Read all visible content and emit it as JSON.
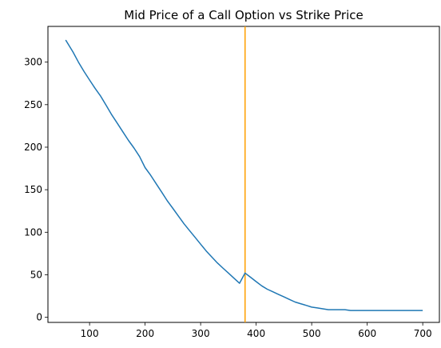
{
  "chart_data": {
    "type": "line",
    "title": "Mid Price of a Call Option vs Strike Price",
    "xlabel": "",
    "ylabel": "",
    "xlim": [
      25,
      730
    ],
    "ylim": [
      -6,
      342
    ],
    "x_ticks": [
      100,
      200,
      300,
      400,
      500,
      600,
      700
    ],
    "y_ticks": [
      0,
      50,
      100,
      150,
      200,
      250,
      300
    ],
    "grid": false,
    "legend": "none",
    "series": [
      {
        "color": "#1f77b4",
        "x": [
          57,
          70,
          80,
          90,
          100,
          110,
          120,
          130,
          140,
          150,
          160,
          170,
          180,
          190,
          200,
          210,
          220,
          230,
          240,
          250,
          260,
          270,
          280,
          290,
          300,
          310,
          320,
          330,
          340,
          350,
          360,
          370,
          380,
          390,
          400,
          410,
          420,
          430,
          440,
          450,
          460,
          470,
          480,
          490,
          500,
          510,
          520,
          530,
          540,
          550,
          560,
          570,
          580,
          600,
          620,
          640,
          660,
          680,
          690,
          700
        ],
        "y": [
          326,
          312,
          300,
          289,
          279,
          269,
          260,
          249,
          238,
          228,
          218,
          208,
          199,
          189,
          176,
          167,
          157,
          147,
          137,
          128,
          119,
          110,
          102,
          94,
          86,
          78,
          71,
          64,
          58,
          52,
          46,
          40,
          52,
          47,
          42,
          37,
          33,
          30,
          27,
          24,
          21,
          18,
          16,
          14,
          12,
          11,
          10,
          9,
          9,
          9,
          9,
          8,
          8,
          8,
          8,
          8,
          8,
          8,
          8,
          8
        ]
      }
    ],
    "vlines": [
      {
        "x": 380,
        "color": "#ff9f00"
      }
    ]
  }
}
